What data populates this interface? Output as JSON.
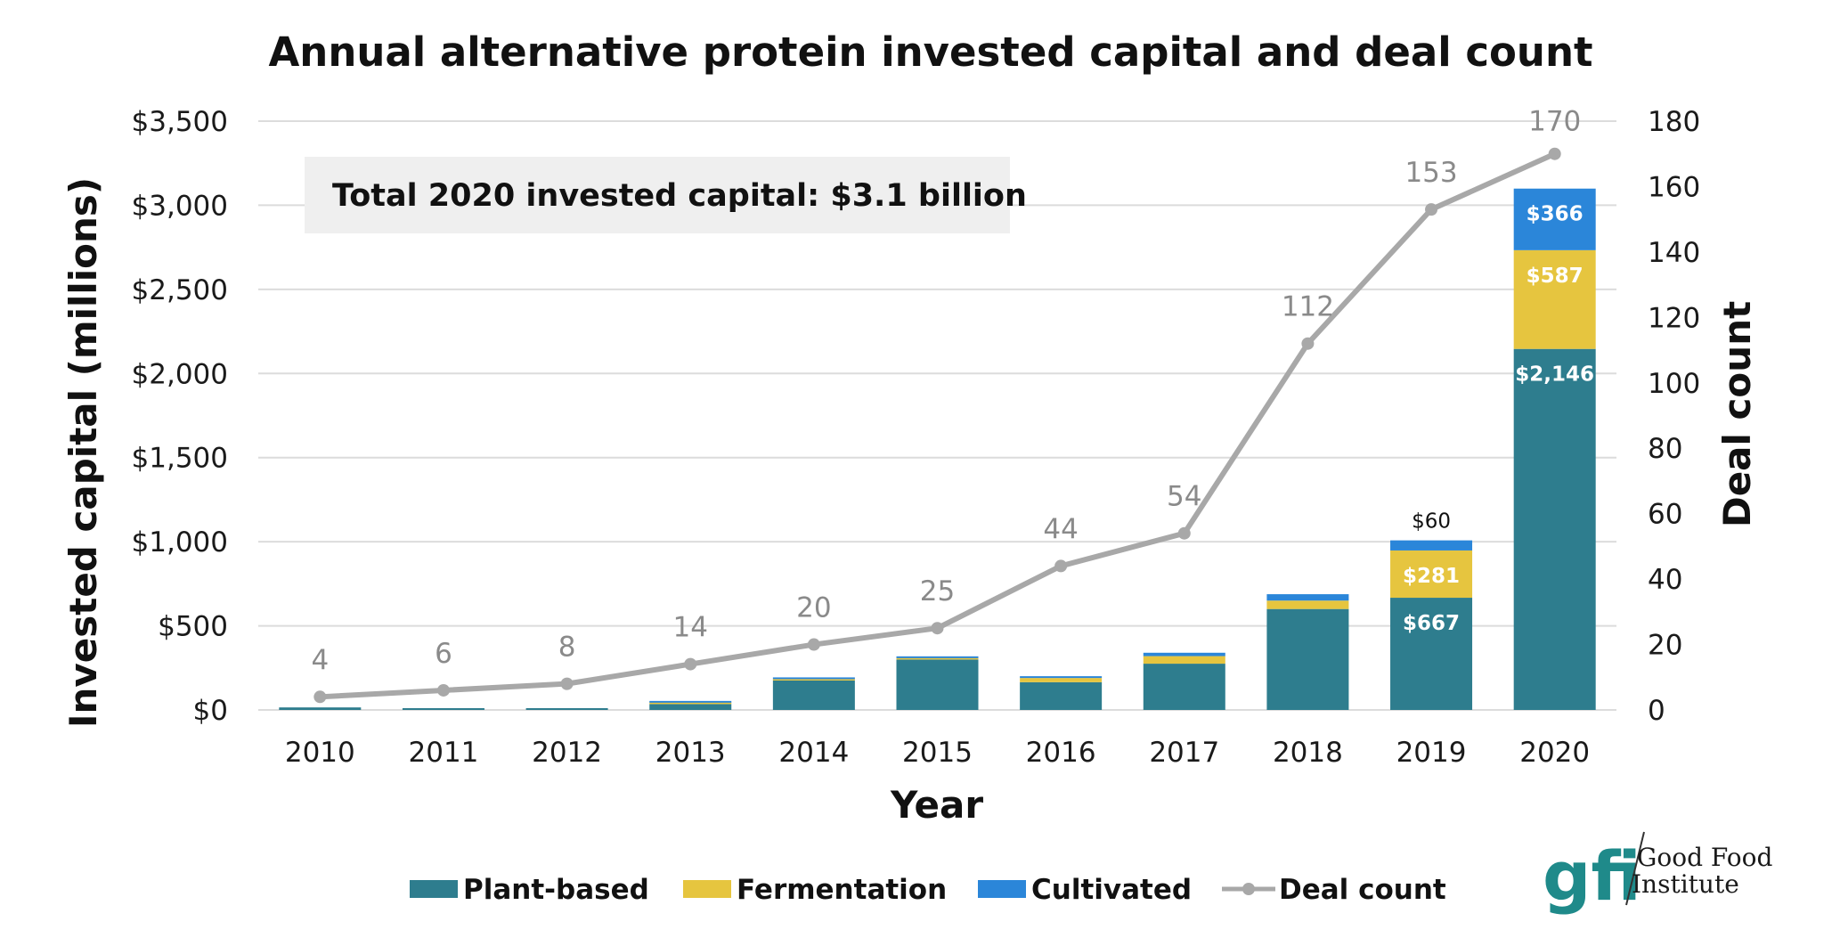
{
  "colors": {
    "plant_based": "#2e7d8e",
    "fermentation": "#e6c53f",
    "cultivated": "#2b86d9",
    "deal_count": "#a8a8a8",
    "annotation_bg": "#efefef",
    "gridline": "#dcdcdc",
    "logo": "#1f8a8a"
  },
  "annotation": {
    "text": "Total 2020 invested capital: $3.1 billion"
  },
  "logo": {
    "mark": "gfi",
    "line1": "Good Food",
    "line2": "Institute"
  },
  "chart_data": {
    "type": "bar",
    "stacked": true,
    "title": "Annual alternative protein invested capital and deal count",
    "xlabel": "Year",
    "ylabel": "Invested capital (millions)",
    "y2label": "Deal count",
    "categories": [
      "2010",
      "2011",
      "2012",
      "2013",
      "2014",
      "2015",
      "2016",
      "2017",
      "2018",
      "2019",
      "2020"
    ],
    "ylim": [
      0,
      3500
    ],
    "yticks": [
      0,
      500,
      1000,
      1500,
      2000,
      2500,
      3000,
      3500
    ],
    "ytick_labels": [
      "$0",
      "$500",
      "$1,000",
      "$1,500",
      "$2,000",
      "$2,500",
      "$3,000",
      "$3,500"
    ],
    "y2lim": [
      0,
      180
    ],
    "y2ticks": [
      0,
      20,
      40,
      60,
      80,
      100,
      120,
      140,
      160,
      180
    ],
    "y2tick_labels": [
      "0",
      "20",
      "40",
      "60",
      "80",
      "100",
      "120",
      "140",
      "160",
      "180"
    ],
    "grid": true,
    "legend_position": "bottom",
    "series": [
      {
        "name": "Plant-based",
        "type": "bar",
        "color_key": "plant_based",
        "values": [
          15,
          10,
          8,
          35,
          175,
          300,
          165,
          275,
          600,
          667,
          2146
        ],
        "labels": [
          null,
          null,
          null,
          null,
          null,
          null,
          null,
          null,
          null,
          "$667",
          "$2,146"
        ]
      },
      {
        "name": "Fermentation",
        "type": "bar",
        "color_key": "fermentation",
        "values": [
          0,
          0,
          0,
          8,
          8,
          8,
          25,
          45,
          50,
          281,
          587
        ],
        "labels": [
          null,
          null,
          null,
          null,
          null,
          null,
          null,
          null,
          null,
          "$281",
          "$587"
        ]
      },
      {
        "name": "Cultivated",
        "type": "bar",
        "color_key": "cultivated",
        "values": [
          0,
          0,
          0,
          2,
          2,
          4,
          10,
          20,
          38,
          60,
          366
        ],
        "labels": [
          null,
          null,
          null,
          null,
          null,
          null,
          null,
          null,
          null,
          "$60",
          "$366"
        ]
      },
      {
        "name": "Deal count",
        "type": "line",
        "axis": "y2",
        "color_key": "deal_count",
        "values": [
          4,
          6,
          8,
          14,
          20,
          25,
          44,
          54,
          112,
          153,
          170
        ],
        "labels": [
          "4",
          "6",
          "8",
          "14",
          "20",
          "25",
          "44",
          "54",
          "112",
          "153",
          "170"
        ]
      }
    ]
  }
}
